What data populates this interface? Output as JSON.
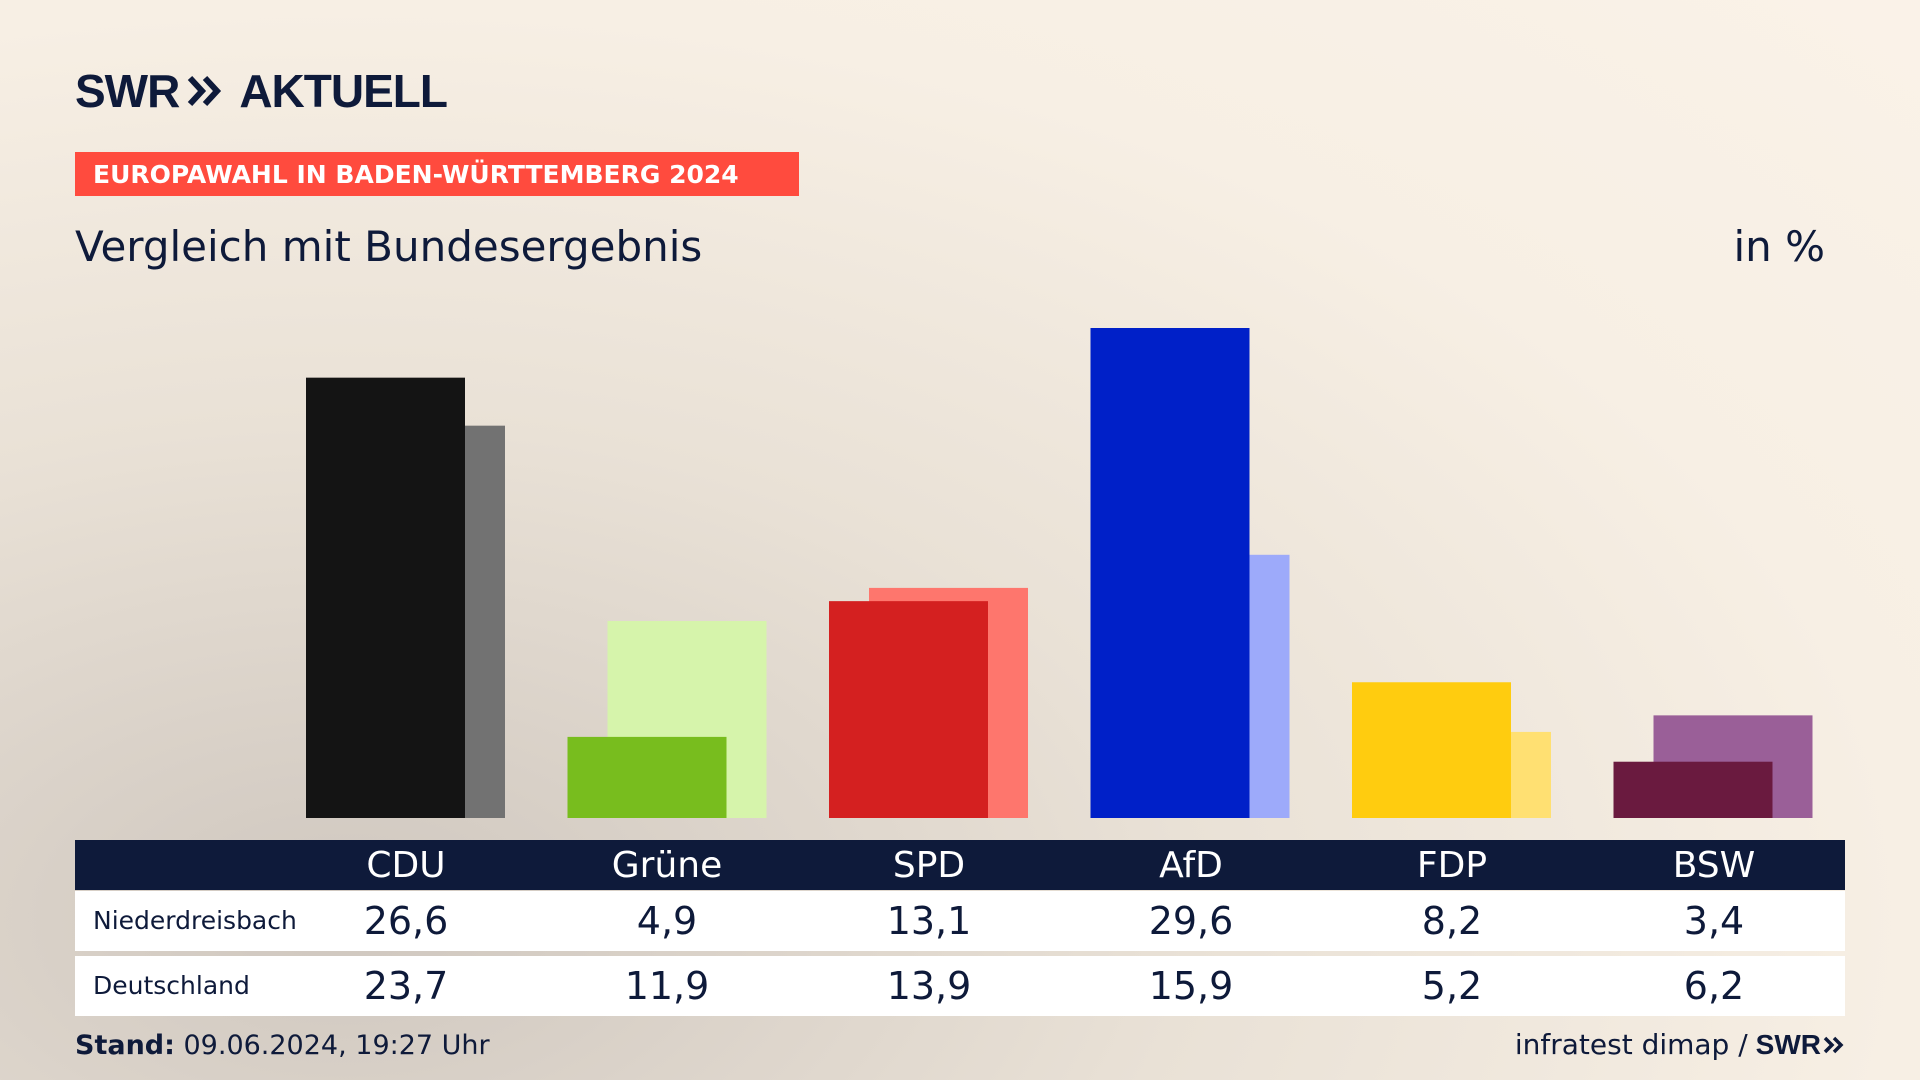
{
  "brand": {
    "logo_left": "SWR",
    "logo_right": "AKTUELL"
  },
  "banner": "EUROPAWAHL IN BADEN-WÜRTTEMBERG 2024",
  "subtitle": "Vergleich mit Bundesergebnis",
  "unit": "in %",
  "chart_data": {
    "type": "bar",
    "title": "Vergleich mit Bundesergebnis",
    "xlabel": "",
    "ylabel": "in %",
    "ylim": [
      0,
      29.6
    ],
    "categories": [
      "CDU",
      "Grüne",
      "SPD",
      "AfD",
      "FDP",
      "BSW"
    ],
    "series": [
      {
        "name": "Niederdreisbach",
        "values": [
          26.6,
          4.9,
          13.1,
          29.6,
          8.2,
          3.4
        ],
        "colors": [
          "#141414",
          "#78bd1e",
          "#d42020",
          "#0020c8",
          "#ffcc0f",
          "#6a1a3f"
        ]
      },
      {
        "name": "Deutschland",
        "values": [
          23.7,
          11.9,
          13.9,
          15.9,
          5.2,
          6.2
        ],
        "colors": [
          "#727272",
          "#d6f4ab",
          "#fe766d",
          "#9daafa",
          "#ffe072",
          "#9a5f98"
        ]
      }
    ]
  },
  "table": {
    "rows": [
      {
        "label": "Niederdreisbach",
        "values": [
          "26,6",
          "4,9",
          "13,1",
          "29,6",
          "8,2",
          "3,4"
        ]
      },
      {
        "label": "Deutschland",
        "values": [
          "23,7",
          "11,9",
          "13,9",
          "15,9",
          "5,2",
          "6,2"
        ]
      }
    ]
  },
  "footer": {
    "stand_label": "Stand:",
    "stand_value": " 09.06.2024, 19:27 Uhr",
    "source": "infratest dimap /",
    "source_logo": "SWR"
  }
}
